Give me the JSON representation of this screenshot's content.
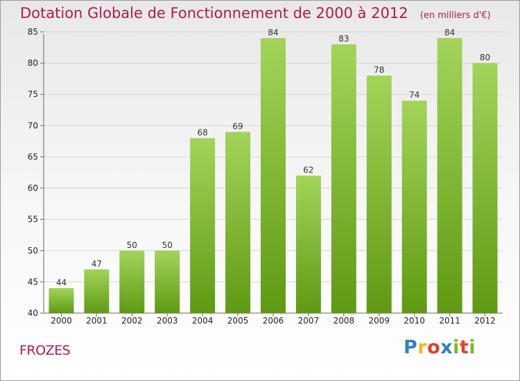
{
  "chart_data": {
    "type": "bar",
    "title": "Dotation Globale de Fonctionnement de 2000 à 2012",
    "unit": "(en milliers d'€)",
    "categories": [
      "2000",
      "2001",
      "2002",
      "2003",
      "2004",
      "2005",
      "2006",
      "2007",
      "2008",
      "2009",
      "2010",
      "2011",
      "2012"
    ],
    "values": [
      44,
      47,
      50,
      50,
      68,
      69,
      84,
      62,
      83,
      78,
      74,
      84,
      80
    ],
    "ylim": [
      40,
      85
    ],
    "yticks": [
      40,
      45,
      50,
      55,
      60,
      65,
      70,
      75,
      80,
      85
    ],
    "grid": true,
    "colors": {
      "bar_top": "#a3d45a",
      "bar_bottom": "#5f9a12",
      "title": "#b0194a"
    }
  },
  "commune": "FROZES",
  "brand": {
    "letters": [
      "P",
      "r",
      "o",
      "x",
      "i",
      "t",
      "i"
    ],
    "colors": [
      "#2f7fc8",
      "#f0b818",
      "#e73c2a",
      "#2f7fc8",
      "#7ab829",
      "#e73c2a",
      "#7ab829"
    ]
  }
}
